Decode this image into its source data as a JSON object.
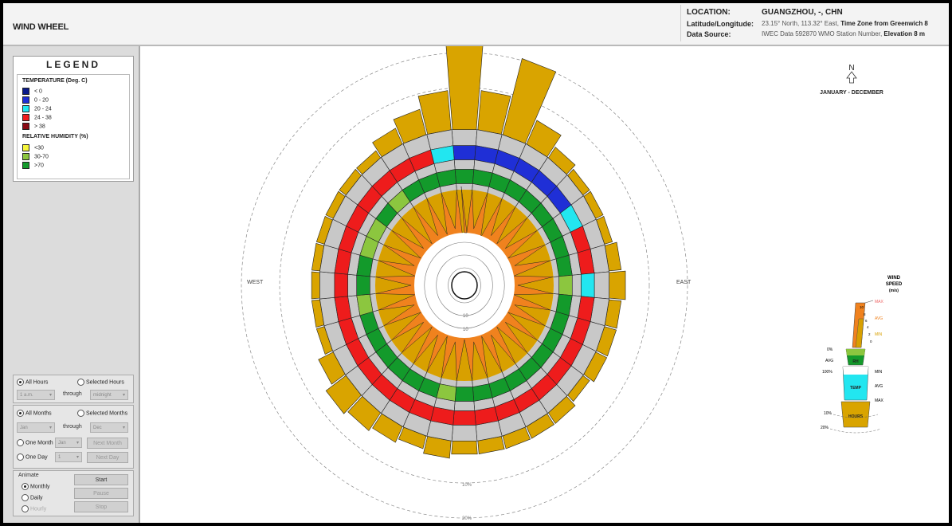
{
  "header": {
    "title": "WIND WHEEL",
    "location_label": "LOCATION:",
    "location_value": "GUANGZHOU, -, CHN",
    "latlon_label": "Latitude/Longitude:",
    "latlon_value": "23.15° North, 113.32° East,",
    "timezone_label": "Time Zone from Greenwich 8",
    "source_label": "Data Source:",
    "source_value": "IWEC Data    592870 WMO Station Number,",
    "elevation_label": "Elevation 8 m"
  },
  "legend": {
    "title": "LEGEND",
    "temperature_heading": "TEMPERATURE (Deg. C)",
    "temperature_items": [
      {
        "label": "< 0",
        "color": "#0a1a8a"
      },
      {
        "label": "0  -  20",
        "color": "#1f2fd6"
      },
      {
        "label": "20  -  24",
        "color": "#22e6f0"
      },
      {
        "label": "24  -  38",
        "color": "#ee1c1c"
      },
      {
        "label": "> 38",
        "color": "#8a0a14"
      }
    ],
    "humidity_heading": "RELATIVE HUMIDITY (%)",
    "humidity_items": [
      {
        "label": "<30",
        "color": "#f5f53c"
      },
      {
        "label": "30-70",
        "color": "#8cc63f"
      },
      {
        "label": ">70",
        "color": "#139a2b"
      }
    ]
  },
  "controls": {
    "all_hours": "All Hours",
    "selected_hours": "Selected Hours",
    "hour_from": "1 a.m.",
    "through_1": "through",
    "hour_to": "midnight",
    "all_months": "All Months",
    "selected_months": "Selected Months",
    "month_from": "Jan",
    "through_2": "through",
    "month_to": "Dec",
    "one_month": "One Month",
    "one_month_value": "Jan",
    "next_month": "Next Month",
    "one_day": "One Day",
    "one_day_value": "1",
    "next_day": "Next Day",
    "animate_label": "Animate",
    "monthly": "Monthly",
    "daily": "Daily",
    "hourly": "Hourly",
    "start": "Start",
    "pause": "Pause",
    "stop": "Stop"
  },
  "wheel": {
    "compass_north": "N",
    "period": "JANUARY - DECEMBER",
    "west": "WEST",
    "east": "EAST",
    "outer_pct_1": "10%",
    "outer_pct_2": "20%",
    "inner_tick": "10",
    "inner_tick_2": "10",
    "colors": {
      "gray": "#c8c8c8",
      "hours": "#d9a400",
      "speed": "#f0821e",
      "speed_dark": "#d8a000"
    },
    "sector_count": 36,
    "ring_temperature": [
      "blue",
      "blue",
      "blue",
      "blue",
      "blue",
      "blue",
      "cyan",
      "red",
      "red",
      "cyan",
      "red",
      "red",
      "red",
      "red",
      "red",
      "red",
      "red",
      "red",
      "red",
      "red",
      "red",
      "red",
      "red",
      "red",
      "red",
      "red",
      "red",
      "red",
      "red",
      "red",
      "red",
      "red",
      "red",
      "red",
      "red",
      "cyan"
    ],
    "ring_humidity": [
      "dg",
      "dg",
      "dg",
      "dg",
      "dg",
      "dg",
      "dg",
      "dg",
      "dg",
      "lg",
      "dg",
      "dg",
      "dg",
      "dg",
      "dg",
      "dg",
      "dg",
      "dg",
      "dg",
      "lg",
      "dg",
      "dg",
      "dg",
      "dg",
      "dg",
      "dg",
      "lg",
      "dg",
      "dg",
      "lg",
      "lg",
      "dg",
      "lg",
      "dg",
      "dg",
      "dg"
    ],
    "hours_percent": [
      13.5,
      4.5,
      9.0,
      3.0,
      1.5,
      1.0,
      1.0,
      1.0,
      1.5,
      2.0,
      1.5,
      1.5,
      1.5,
      1.0,
      1.5,
      1.5,
      1.5,
      1.5,
      1.5,
      2.0,
      1.5,
      2.0,
      2.5,
      3.0,
      2.0,
      1.0,
      1.0,
      1.0,
      1.0,
      1.0,
      1.0,
      1.0,
      1.0,
      2.0,
      3.0,
      4.5
    ],
    "wind_speed_avg": [
      9.5,
      6,
      7,
      6,
      6.5,
      6,
      6.5,
      6,
      6.5,
      6,
      6.5,
      6,
      6.5,
      6,
      6.5,
      6,
      6.5,
      6,
      6.5,
      6,
      6.5,
      6,
      6.5,
      6,
      6.5,
      6,
      6.5,
      6,
      6.5,
      6,
      6.5,
      6,
      6.5,
      6,
      6.5,
      6
    ]
  },
  "speed_legend": {
    "title_1": "WIND",
    "title_2": "SPEED",
    "title_3": "(m/s)",
    "max": "MAX",
    "avg": "AVG",
    "min": "MIN",
    "t10": "10",
    "t8": "8",
    "t6": "6",
    "t4": "4",
    "t2": "2",
    "t0": "0",
    "pct0": "0%",
    "avg_rh": "AVG",
    "rh": "RH",
    "pct100": "100%",
    "min_t": "MIN",
    "temp": "TEMP",
    "avg_t": "AVG",
    "max_t": "MAX",
    "pct10": "10%",
    "hours": "HOURS",
    "pct20": "20%"
  }
}
